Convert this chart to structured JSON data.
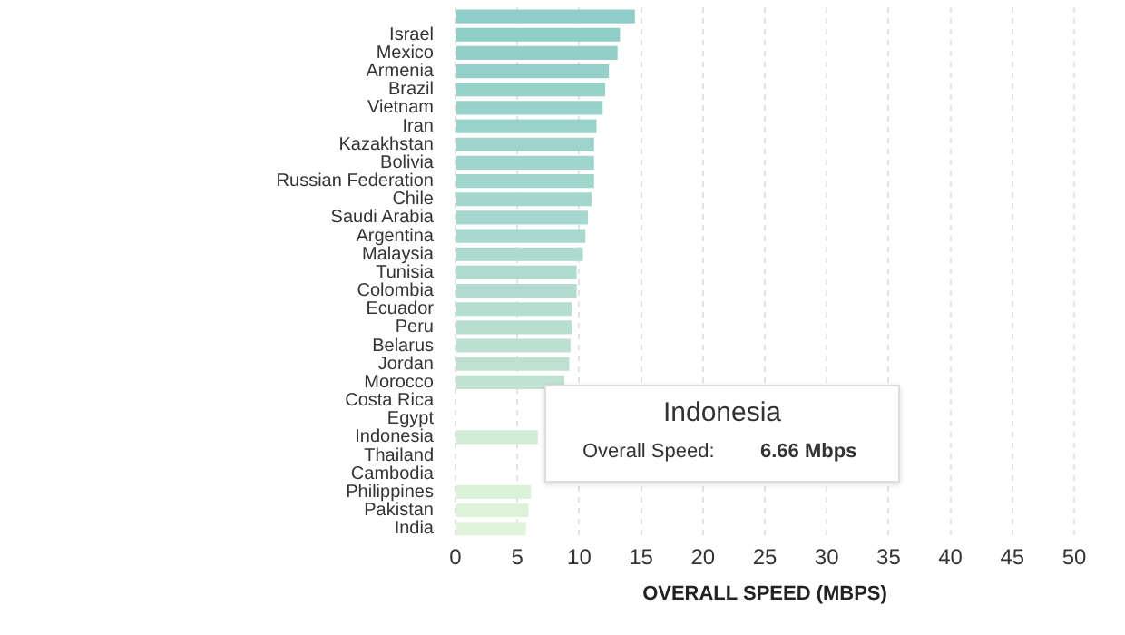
{
  "chart_data": {
    "type": "bar",
    "orientation": "horizontal",
    "xlabel": "OVERALL SPEED (MBPS)",
    "categories": [
      null,
      "Israel",
      "Mexico",
      "Armenia",
      "Brazil",
      "Vietnam",
      "Iran",
      "Kazakhstan",
      "Bolivia",
      "Russian Federation",
      "Chile",
      "Saudi Arabia",
      "Argentina",
      "Malaysia",
      "Tunisia",
      "Colombia",
      "Ecuador",
      "Peru",
      "Belarus",
      "Jordan",
      "Morocco",
      "Costa Rica",
      "Egypt",
      "Indonesia",
      "Thailand",
      "Cambodia",
      "Philippines",
      "Pakistan",
      "India"
    ],
    "values": [
      14.5,
      13.3,
      13.1,
      12.4,
      12.1,
      11.9,
      11.4,
      11.2,
      11.2,
      11.2,
      11.0,
      10.7,
      10.5,
      10.3,
      9.8,
      9.8,
      9.4,
      9.4,
      9.3,
      9.2,
      8.8,
      null,
      null,
      6.66,
      null,
      null,
      6.1,
      5.9,
      5.7
    ],
    "colors": [
      "#8ecdc8",
      "#90cec8",
      "#92cfc9",
      "#94d0c9",
      "#96d1ca",
      "#98d2ca",
      "#9ad3cb",
      "#9cd4cb",
      "#9ed5cc",
      "#a0d6cc",
      "#a3d7cd",
      "#a6d8cd",
      "#a9d9ce",
      "#acdace",
      "#afdbcf",
      "#b2dccf",
      "#b5ddd0",
      "#b8ded0",
      "#bbdfd1",
      "#bee0d1",
      "#c1e2d2",
      "#c6e6d3",
      "#cae9d4",
      "#cfecd5",
      "#d3eed6",
      "#d7efd7",
      "#dbf1d9",
      "#def2da",
      "#e1f3db"
    ],
    "xlim": [
      0,
      50
    ],
    "xticks": [
      0,
      5,
      10,
      15,
      20,
      25,
      30,
      35,
      40,
      45,
      50
    ],
    "grid": "x",
    "annotations": [
      "Indonesia",
      "Overall Speed:",
      "6.66 Mbps"
    ]
  }
}
